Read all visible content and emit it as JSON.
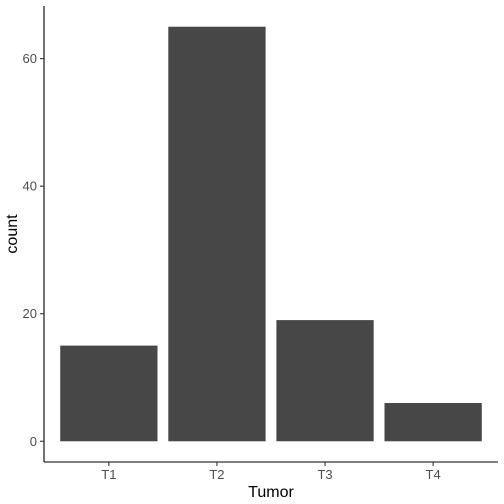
{
  "chart_data": {
    "type": "bar",
    "categories": [
      "T1",
      "T2",
      "T3",
      "T4"
    ],
    "values": [
      15,
      65,
      19,
      6
    ],
    "title": "",
    "xlabel": "Tumor",
    "ylabel": "count",
    "ylim": [
      -3.25,
      68.25
    ],
    "yticks": [
      0,
      20,
      40,
      60
    ],
    "grid": false,
    "legend": "none",
    "bar_color": "#474747",
    "axis_color": "#000000",
    "tick_label_color": "#4d4d4d"
  }
}
